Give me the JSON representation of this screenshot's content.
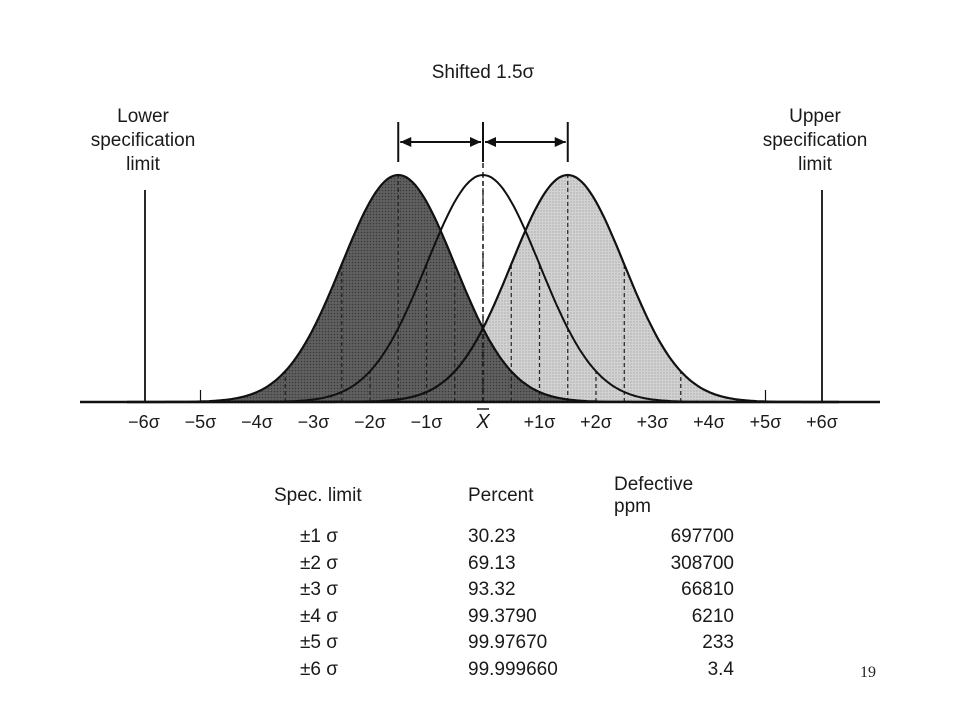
{
  "diagram": {
    "title": "Shifted 1.5σ",
    "lower_limit_label": [
      "Lower",
      "specification",
      "limit"
    ],
    "upper_limit_label": [
      "Upper",
      "specification",
      "limit"
    ],
    "axis_ticks": [
      "−6σ",
      "−5σ",
      "−4σ",
      "−3σ",
      "−2σ",
      "−1σ",
      "X",
      "+1σ",
      "+2σ",
      "+3σ",
      "+4σ",
      "+5σ",
      "+6σ"
    ],
    "shift_sigma": 1.5,
    "colors": {
      "left_curve_fill": "#5c5c5c",
      "right_curve_fill": "#c9c9c9",
      "line": "#111111"
    }
  },
  "table": {
    "headers": [
      "Spec. limit",
      "Percent",
      "Defective ppm"
    ],
    "rows": [
      [
        "±1 σ",
        "30.23",
        "697700"
      ],
      [
        "±2 σ",
        "69.13",
        "308700"
      ],
      [
        "±3 σ",
        "93.32",
        "66810"
      ],
      [
        "±4 σ",
        "99.3790",
        "6210"
      ],
      [
        "±5 σ",
        "99.97670",
        "233"
      ],
      [
        "±6 σ",
        "99.999660",
        "3.4"
      ]
    ]
  },
  "page_number": "19"
}
